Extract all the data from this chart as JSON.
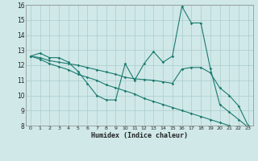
{
  "xlabel": "Humidex (Indice chaleur)",
  "x": [
    0,
    1,
    2,
    3,
    4,
    5,
    6,
    7,
    8,
    9,
    10,
    11,
    12,
    13,
    14,
    15,
    16,
    17,
    18,
    19,
    20,
    21,
    22,
    23
  ],
  "line1": [
    12.6,
    12.8,
    12.5,
    12.5,
    12.2,
    11.6,
    10.8,
    10.0,
    9.7,
    9.7,
    12.1,
    11.0,
    12.1,
    12.9,
    12.2,
    12.6,
    15.9,
    14.8,
    14.8,
    11.8,
    9.4,
    8.9,
    8.4,
    7.9
  ],
  "line2": [
    12.6,
    12.5,
    12.3,
    12.2,
    12.1,
    12.0,
    11.85,
    11.7,
    11.55,
    11.4,
    11.2,
    11.1,
    11.05,
    11.0,
    10.9,
    10.8,
    11.75,
    11.85,
    11.85,
    11.5,
    10.5,
    10.0,
    9.3,
    8.0
  ],
  "line3": [
    12.6,
    12.4,
    12.1,
    11.9,
    11.7,
    11.4,
    11.2,
    11.0,
    10.7,
    10.5,
    10.3,
    10.1,
    9.8,
    9.6,
    9.4,
    9.2,
    9.0,
    8.8,
    8.6,
    8.4,
    8.2,
    8.0,
    7.8,
    7.65
  ],
  "line_color": "#1a7a6e",
  "bg_color": "#d0e8e8",
  "grid_color": "#aacccc",
  "ylim": [
    8,
    16
  ],
  "xlim": [
    -0.5,
    23.5
  ],
  "yticks": [
    8,
    9,
    10,
    11,
    12,
    13,
    14,
    15,
    16
  ],
  "xticks": [
    0,
    1,
    2,
    3,
    4,
    5,
    6,
    7,
    8,
    9,
    10,
    11,
    12,
    13,
    14,
    15,
    16,
    17,
    18,
    19,
    20,
    21,
    22,
    23
  ]
}
